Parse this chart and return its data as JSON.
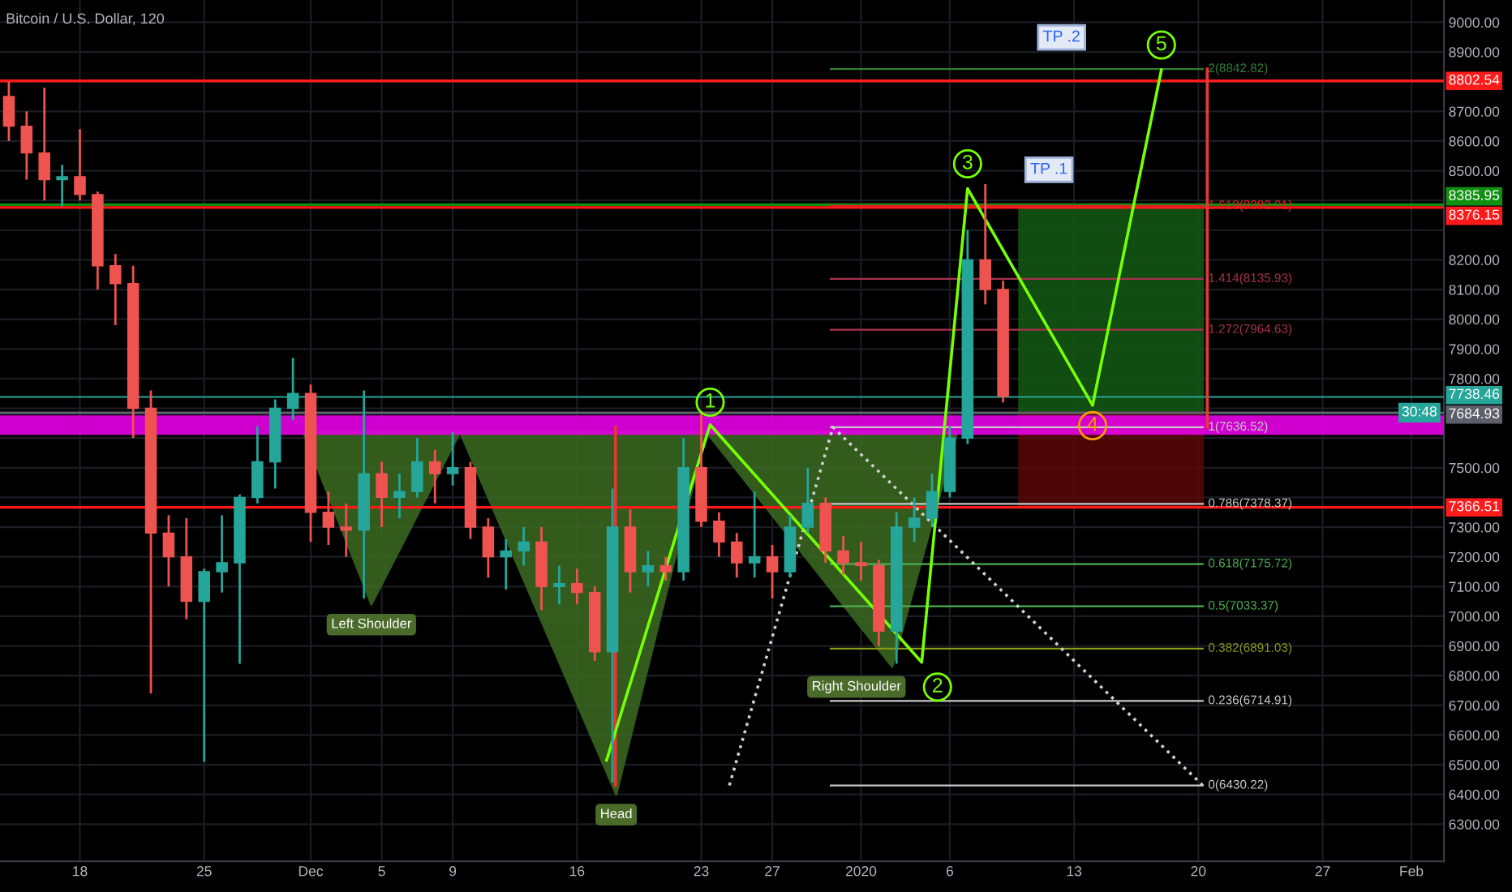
{
  "chart_data": {
    "type": "candlestick",
    "title": "Bitcoin / U.S. Dollar, 120",
    "x": [
      "2019-11-14",
      "2019-11-15",
      "2019-11-16",
      "2019-11-17",
      "2019-11-18",
      "2019-11-19",
      "2019-11-20",
      "2019-11-21",
      "2019-11-22",
      "2019-11-23",
      "2019-11-24",
      "2019-11-25",
      "2019-11-26",
      "2019-11-27",
      "2019-11-28",
      "2019-11-29",
      "2019-11-30",
      "2019-12-01",
      "2019-12-02",
      "2019-12-03",
      "2019-12-04",
      "2019-12-05",
      "2019-12-06",
      "2019-12-07",
      "2019-12-08",
      "2019-12-09",
      "2019-12-10",
      "2019-12-11",
      "2019-12-12",
      "2019-12-13",
      "2019-12-14",
      "2019-12-15",
      "2019-12-16",
      "2019-12-17",
      "2019-12-18",
      "2019-12-19",
      "2019-12-20",
      "2019-12-21",
      "2019-12-22",
      "2019-12-23",
      "2019-12-24",
      "2019-12-25",
      "2019-12-26",
      "2019-12-27",
      "2019-12-28",
      "2019-12-29",
      "2019-12-30",
      "2019-12-31",
      "2020-01-01",
      "2020-01-02",
      "2020-01-03",
      "2020-01-04",
      "2020-01-05",
      "2020-01-06",
      "2020-01-07",
      "2020-01-08",
      "2020-01-09"
    ],
    "ohlc": [
      [
        8750,
        8800,
        8600,
        8650
      ],
      [
        8650,
        8700,
        8470,
        8560
      ],
      [
        8560,
        8780,
        8400,
        8470
      ],
      [
        8470,
        8520,
        8380,
        8480
      ],
      [
        8480,
        8640,
        8400,
        8420
      ],
      [
        8420,
        8430,
        8100,
        8180
      ],
      [
        8180,
        8220,
        7980,
        8120
      ],
      [
        8120,
        8180,
        7600,
        7700
      ],
      [
        7700,
        7760,
        6740,
        7280
      ],
      [
        7280,
        7340,
        7100,
        7200
      ],
      [
        7200,
        7330,
        6990,
        7050
      ],
      [
        7050,
        7160,
        6510,
        7150
      ],
      [
        7150,
        7340,
        7080,
        7180
      ],
      [
        7180,
        7410,
        6840,
        7400
      ],
      [
        7400,
        7640,
        7380,
        7520
      ],
      [
        7520,
        7730,
        7430,
        7700
      ],
      [
        7700,
        7870,
        7660,
        7750
      ],
      [
        7750,
        7780,
        7250,
        7350
      ],
      [
        7350,
        7420,
        7240,
        7300
      ],
      [
        7300,
        7380,
        7200,
        7290
      ],
      [
        7290,
        7760,
        7060,
        7480
      ],
      [
        7480,
        7520,
        7300,
        7400
      ],
      [
        7400,
        7480,
        7330,
        7420
      ],
      [
        7420,
        7600,
        7400,
        7520
      ],
      [
        7520,
        7560,
        7380,
        7480
      ],
      [
        7480,
        7620,
        7440,
        7500
      ],
      [
        7500,
        7520,
        7260,
        7300
      ],
      [
        7300,
        7330,
        7130,
        7200
      ],
      [
        7200,
        7260,
        7090,
        7220
      ],
      [
        7220,
        7300,
        7170,
        7250
      ],
      [
        7250,
        7300,
        7020,
        7100
      ],
      [
        7100,
        7170,
        7040,
        7110
      ],
      [
        7110,
        7160,
        7040,
        7080
      ],
      [
        7080,
        7100,
        6850,
        6880
      ],
      [
        6880,
        7430,
        6440,
        7300
      ],
      [
        7300,
        7360,
        7080,
        7150
      ],
      [
        7150,
        7220,
        7100,
        7170
      ],
      [
        7170,
        7200,
        7120,
        7150
      ],
      [
        7150,
        7600,
        7120,
        7500
      ],
      [
        7500,
        7690,
        7300,
        7320
      ],
      [
        7320,
        7350,
        7200,
        7250
      ],
      [
        7250,
        7280,
        7130,
        7180
      ],
      [
        7180,
        7420,
        7130,
        7200
      ],
      [
        7200,
        7240,
        7060,
        7150
      ],
      [
        7150,
        7340,
        7130,
        7300
      ],
      [
        7300,
        7500,
        7280,
        7380
      ],
      [
        7380,
        7400,
        7180,
        7220
      ],
      [
        7220,
        7270,
        7140,
        7180
      ],
      [
        7180,
        7250,
        7120,
        7170
      ],
      [
        7170,
        7190,
        6900,
        6950
      ],
      [
        6950,
        7350,
        6840,
        7300
      ],
      [
        7300,
        7400,
        7250,
        7330
      ],
      [
        7330,
        7480,
        7300,
        7420
      ],
      [
        7420,
        7640,
        7400,
        7600
      ],
      [
        7600,
        8300,
        7580,
        8200
      ],
      [
        8200,
        8455,
        8050,
        8100
      ],
      [
        8100,
        8130,
        7720,
        7740
      ]
    ],
    "series": [
      {
        "type": "area",
        "color": "#3b6b22",
        "x": [
          "2019-11-30T14:00",
          "2019-12-04T10:00",
          "2019-12-09T10:00"
        ],
        "values": [
          7620,
          7040,
          7620
        ]
      },
      {
        "type": "area",
        "color": "#3b6b22",
        "x": [
          "2019-12-09T10:00",
          "2019-12-18T05:00",
          "2019-12-23T07:00"
        ],
        "values": [
          7620,
          6400,
          7620
        ]
      },
      {
        "type": "area",
        "color": "#3b6b22",
        "x": [
          "2019-12-23T07:00",
          "2020-01-02T18:00",
          "2020-01-06T10:00"
        ],
        "values": [
          7620,
          6830,
          7620
        ]
      },
      {
        "type": "area",
        "color": "#145a14",
        "x": [
          "2020-01-09T22:00",
          "2020-01-20T06:00",
          "2020-01-20T06:00",
          "2020-01-09T22:00"
        ],
        "values": [
          8385.95,
          8385.95,
          7684.93,
          7684.93
        ]
      },
      {
        "type": "area",
        "color": "#5a0808",
        "x": [
          "2020-01-09T22:00",
          "2020-01-20T06:00",
          "2020-01-20T06:00",
          "2020-01-09T22:00"
        ],
        "values": [
          7684.93,
          7684.93,
          7366.51,
          7366.51
        ]
      },
      {
        "type": "line",
        "name": "0(6430.22)",
        "color": "#c8c8c8",
        "x": [
          "2019-12-30T07:00",
          "2020-01-20T06:00"
        ],
        "values": [
          6430.22,
          6430.22
        ]
      },
      {
        "type": "line",
        "name": "0.236(6714.91)",
        "color": "#c8c8c8",
        "x": [
          "2019-12-30T07:00",
          "2020-01-20T06:00"
        ],
        "values": [
          6714.91,
          6714.91
        ]
      },
      {
        "type": "line",
        "name": "0.382(6891.03)",
        "color": "#8a9a1a",
        "x": [
          "2019-12-30T07:00",
          "2020-01-20T06:00"
        ],
        "values": [
          6891.03,
          6891.03
        ]
      },
      {
        "type": "line",
        "name": "0.5(7033.37)",
        "color": "#4caf50",
        "x": [
          "2019-12-30T07:00",
          "2020-01-20T06:00"
        ],
        "values": [
          7033.37,
          7033.37
        ]
      },
      {
        "type": "line",
        "name": "0.618(7175.72)",
        "color": "#4caf50",
        "x": [
          "2019-12-30T07:00",
          "2020-01-20T06:00"
        ],
        "values": [
          7175.72,
          7175.72
        ]
      },
      {
        "type": "line",
        "name": "0.786(7378.37)",
        "color": "#c8c8c8",
        "x": [
          "2019-12-30T07:00",
          "2020-01-20T06:00"
        ],
        "values": [
          7378.37,
          7378.37
        ]
      },
      {
        "type": "line",
        "name": "1(7636.52)",
        "color": "#c8c8c8",
        "x": [
          "2019-12-30T07:00",
          "2020-01-20T06:00"
        ],
        "values": [
          7636.52,
          7636.52
        ]
      },
      {
        "type": "line",
        "name": "1.272(7964.63)",
        "color": "#a83250",
        "x": [
          "2019-12-30T07:00",
          "2020-01-20T06:00"
        ],
        "values": [
          7964.63,
          7964.63
        ]
      },
      {
        "type": "line",
        "name": "1.414(8135.93)",
        "color": "#a83250",
        "x": [
          "2019-12-30T07:00",
          "2020-01-20T06:00"
        ],
        "values": [
          8135.93,
          8135.93
        ]
      },
      {
        "type": "line",
        "name": "1.618(8382.01)",
        "color": "#e02020",
        "x": [
          "2019-12-30T07:00",
          "2020-01-20T06:00"
        ],
        "values": [
          8382.01,
          8382.01
        ]
      },
      {
        "type": "line",
        "name": "2(8842.82)",
        "color": "#2e7d32",
        "x": [
          "2019-12-30T07:00",
          "2020-01-20T06:00"
        ],
        "values": [
          8842.82,
          8842.82
        ]
      },
      {
        "type": "line",
        "color": "#d0d0d0",
        "line_style": "dotted",
        "x": [
          "2019-12-24T14:00",
          "2019-12-30T10:00",
          "2020-01-20T06:00"
        ],
        "values": [
          6430.22,
          7636.52,
          6430.22
        ]
      },
      {
        "type": "line",
        "color": "#e53935",
        "x": [
          "2019-12-18T04:00",
          "2019-12-18T04:00"
        ],
        "values": [
          6430.22,
          7636.52
        ]
      },
      {
        "type": "line",
        "color": "#e53935",
        "x": [
          "2020-01-20T12:00",
          "2020-01-20T12:00"
        ],
        "values": [
          7636.52,
          8842.82
        ]
      },
      {
        "type": "line",
        "color": "#76ff03",
        "x": [
          "2019-12-17T16:00",
          "2019-12-23T12:00",
          "2020-01-04T10:00",
          "2020-01-07T00:00",
          "2020-01-14T01:00",
          "2020-01-17T22:00"
        ],
        "values": [
          6515,
          7645,
          6845,
          8440,
          7710,
          8840
        ]
      }
    ],
    "bands": [
      {
        "axis": "y",
        "from": 7611,
        "to": 7676,
        "color": "#e600e6"
      }
    ],
    "ref_lines": [
      {
        "axis": "y",
        "value": 8802.54,
        "label": "8802.54",
        "color": "#ff1a1a"
      },
      {
        "axis": "y",
        "value": 8385.95,
        "label": "8385.95",
        "color": "#109010"
      },
      {
        "axis": "y",
        "value": 8376.15,
        "label": "8376.15",
        "color": "#ff1a1a"
      },
      {
        "axis": "y",
        "value": 7738.46,
        "label": "7738.46",
        "color": "#26a69a"
      },
      {
        "axis": "y",
        "value": 7684.93,
        "label": "7684.93",
        "color": "#5d606b"
      },
      {
        "axis": "y",
        "value": 7366.51,
        "label": "7366.51",
        "color": "#ff1a1a"
      }
    ],
    "legend": "right",
    "annotations": [
      {
        "text": "Left Shoulder",
        "x": "2019-12-04T10:00",
        "y": 7040
      },
      {
        "text": "Head",
        "x": "2019-12-18T05:00",
        "y": 6400
      },
      {
        "text": "Right Shoulder",
        "x": "2020-01-02T18:00",
        "y": 6830
      },
      {
        "text": "TP .1",
        "x": "2020-01-11T14:00",
        "y": 8382.01
      },
      {
        "text": "TP .2",
        "x": "2020-01-14T20:00",
        "y": 8842.82
      },
      {
        "text": "1",
        "x": "2019-12-23T12:00",
        "y": 7645
      },
      {
        "text": "2",
        "x": "2020-01-04T10:00",
        "y": 6845
      },
      {
        "text": "3",
        "x": "2020-01-07T00:00",
        "y": 8440
      },
      {
        "text": "4",
        "x": "2020-01-14T01:00",
        "y": 7710
      },
      {
        "text": "5",
        "x": "2020-01-17T22:00",
        "y": 8840
      },
      "30:48"
    ],
    "xlim": [
      "2019-11-13T12:00",
      "2020-02-02T20:00"
    ],
    "ylim": [
      6175,
      9075
    ],
    "xticks": [
      {
        "value": "2019-11-18",
        "label": "18"
      },
      {
        "value": "2019-11-25",
        "label": "25"
      },
      {
        "value": "2019-12-01",
        "label": "Dec"
      },
      {
        "value": "2019-12-05",
        "label": "5"
      },
      {
        "value": "2019-12-09",
        "label": "9"
      },
      {
        "value": "2019-12-16",
        "label": "16"
      },
      {
        "value": "2019-12-23",
        "label": "23"
      },
      {
        "value": "2019-12-27",
        "label": "27"
      },
      {
        "value": "2020-01-01",
        "label": "2020"
      },
      {
        "value": "2020-01-06",
        "label": "6"
      },
      {
        "value": "2020-01-13",
        "label": "13"
      },
      {
        "value": "2020-01-20",
        "label": "20"
      },
      {
        "value": "2020-01-27",
        "label": "27"
      },
      {
        "value": "2020-02-01",
        "label": "Feb"
      }
    ],
    "yticks": [
      {
        "value": 9000,
        "label": "9000.00"
      },
      {
        "value": 8900,
        "label": "8900.00"
      },
      {
        "value": 8800,
        "label": null
      },
      {
        "value": 8700,
        "label": "8700.00"
      },
      {
        "value": 8600,
        "label": "8600.00"
      },
      {
        "value": 8500,
        "label": "8500.00"
      },
      {
        "value": 8400,
        "label": null
      },
      {
        "value": 8300,
        "label": null
      },
      {
        "value": 8200,
        "label": "8200.00"
      },
      {
        "value": 8100,
        "label": "8100.00"
      },
      {
        "value": 8000,
        "label": "8000.00"
      },
      {
        "value": 7900,
        "label": "7900.00"
      },
      {
        "value": 7800,
        "label": "7800.00"
      },
      {
        "value": 7700,
        "label": null
      },
      {
        "value": 7600,
        "label": null
      },
      {
        "value": 7500,
        "label": "7500.00"
      },
      {
        "value": 7400,
        "label": null
      },
      {
        "value": 7300,
        "label": "7300.00"
      },
      {
        "value": 7200,
        "label": "7200.00"
      },
      {
        "value": 7100,
        "label": "7100.00"
      },
      {
        "value": 7000,
        "label": "7000.00"
      },
      {
        "value": 6900,
        "label": "6900.00"
      },
      {
        "value": 6800,
        "label": "6800.00"
      },
      {
        "value": 6700,
        "label": "6700.00"
      },
      {
        "value": 6600,
        "label": "6600.00"
      },
      {
        "value": 6500,
        "label": "6500.00"
      },
      {
        "value": 6400,
        "label": "6400.00"
      },
      {
        "value": 6300,
        "label": "6300.00"
      }
    ],
    "grid": true
  }
}
